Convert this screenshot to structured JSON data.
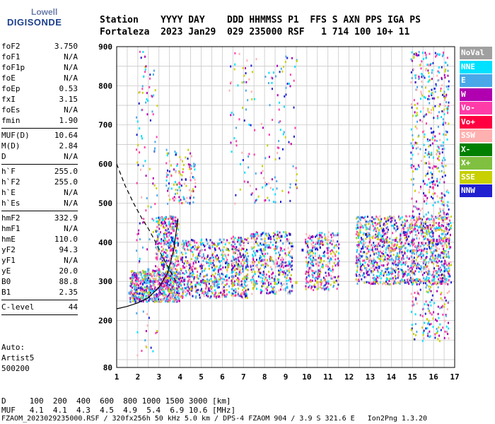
{
  "logo": {
    "line1": "Lowell",
    "line2": "DIGISONDE"
  },
  "header": {
    "line1": "Station    YYYY DAY    DDD HHMMSS P1  FFS S AXN PPS IGA PS",
    "line2": "Fortaleza  2023 Jan29  029 235000 RSF   1 714 100 10+ 11"
  },
  "params": [
    {
      "k": "foF2",
      "v": "3.750"
    },
    {
      "k": "foF1",
      "v": "N/A"
    },
    {
      "k": "foF1p",
      "v": "N/A"
    },
    {
      "k": "foE",
      "v": "N/A"
    },
    {
      "k": "foEp",
      "v": "0.53"
    },
    {
      "k": "fxI",
      "v": "3.15"
    },
    {
      "k": "foEs",
      "v": "N/A"
    },
    {
      "k": "fmin",
      "v": "1.90"
    },
    {
      "sep": true
    },
    {
      "k": "MUF(D)",
      "v": "10.64"
    },
    {
      "k": "M(D)",
      "v": "2.84"
    },
    {
      "k": "D",
      "v": "N/A"
    },
    {
      "sep": true
    },
    {
      "k": "h`F",
      "v": "255.0"
    },
    {
      "k": "h`F2",
      "v": "255.0"
    },
    {
      "k": "h`E",
      "v": "N/A"
    },
    {
      "k": "h`Es",
      "v": "N/A"
    },
    {
      "sep": true
    },
    {
      "k": "hmF2",
      "v": "332.9"
    },
    {
      "k": "hmF1",
      "v": "N/A"
    },
    {
      "k": "hmE",
      "v": "110.0"
    },
    {
      "k": "yF2",
      "v": "94.3"
    },
    {
      "k": "yF1",
      "v": "N/A"
    },
    {
      "k": "yE",
      "v": "20.0"
    },
    {
      "k": "B0",
      "v": "88.8"
    },
    {
      "k": "B1",
      "v": "2.35"
    },
    {
      "sep": true
    },
    {
      "k": "C-level",
      "v": "44"
    },
    {
      "sep": true
    }
  ],
  "auto": {
    "l1": "Auto:",
    "l2": "Artist5",
    "l3": "500200"
  },
  "legend": [
    {
      "label": "NoVal",
      "color": "#a0a0a0"
    },
    {
      "label": "NNE",
      "color": "#00e0ff"
    },
    {
      "label": "E",
      "color": "#4aa8e8"
    },
    {
      "label": "W",
      "color": "#b000b0"
    },
    {
      "label": "Vo-",
      "color": "#ff3ca8"
    },
    {
      "label": "Vo+",
      "color": "#ff0040"
    },
    {
      "label": "SSW",
      "color": "#ffb0b0"
    },
    {
      "label": "X-",
      "color": "#008000"
    },
    {
      "label": "X+",
      "color": "#80c040"
    },
    {
      "label": "SSE",
      "color": "#c8d000"
    },
    {
      "label": "NNW",
      "color": "#2020d0"
    }
  ],
  "muf_table": {
    "row1": "D     100  200  400  600  800 1000 1500 3000 [km]",
    "row2": "MUF   4.1  4.1  4.3  4.5  4.9  5.4  6.9 10.6 [MHz]"
  },
  "footer": "FZAOM_2023029235000.RSF / 320fx256h 50 kHz 5.0 km / DPS-4 FZAOM 904 / 3.9 S 321.6 E   Ion2Png 1.3.20",
  "chart_data": {
    "type": "scatter",
    "title": "",
    "xlabel": "",
    "ylabel": "",
    "xlim": [
      1,
      17
    ],
    "ylim": [
      80,
      900
    ],
    "x_ticks": [
      1,
      2,
      3,
      4,
      5,
      6,
      7,
      8,
      9,
      10,
      11,
      12,
      13,
      14,
      15,
      16,
      17
    ],
    "y_ticks": [
      80,
      200,
      300,
      400,
      500,
      600,
      700,
      800,
      900
    ],
    "grid": true,
    "legend_position": "right",
    "series": [
      {
        "name": "NNE",
        "color": "#00e0ff",
        "points": [
          [
            13.2,
            305
          ],
          [
            13.8,
            305
          ],
          [
            14.5,
            303
          ],
          [
            15.2,
            305
          ],
          [
            16.0,
            303
          ],
          [
            16.6,
            305
          ],
          [
            13.5,
            320
          ],
          [
            14.8,
            318
          ]
        ]
      },
      {
        "name": "E",
        "color": "#4aa8e8",
        "points": [
          [
            3.5,
            395
          ],
          [
            4.2,
            395
          ],
          [
            5.0,
            395
          ],
          [
            5.8,
            395
          ],
          [
            1.6,
            270
          ],
          [
            2.5,
            330
          ],
          [
            4.0,
            320
          ],
          [
            6.8,
            318
          ]
        ]
      },
      {
        "name": "W",
        "color": "#b000b0",
        "points": [
          [
            2.6,
            300
          ],
          [
            3.4,
            300
          ],
          [
            4.2,
            302
          ],
          [
            5.0,
            300
          ],
          [
            13.5,
            405
          ],
          [
            14.2,
            405
          ],
          [
            15.0,
            404
          ],
          [
            16.0,
            405
          ],
          [
            16.6,
            404
          ]
        ]
      },
      {
        "name": "Vo-",
        "color": "#ff3ca8",
        "points": [
          [
            3.0,
            330
          ],
          [
            3.6,
            380
          ],
          [
            3.7,
            430
          ],
          [
            2.9,
            360
          ]
        ]
      },
      {
        "name": "SSW",
        "color": "#ffb0b0",
        "points": [
          [
            6.5,
            345
          ],
          [
            7.5,
            345
          ],
          [
            8.5,
            345
          ],
          [
            10.5,
            345
          ],
          [
            13.0,
            350
          ]
        ]
      },
      {
        "name": "SSE",
        "color": "#c8d000",
        "points": [
          [
            2.5,
            270
          ],
          [
            3.5,
            275
          ],
          [
            4.5,
            280
          ],
          [
            5.5,
            285
          ],
          [
            6.5,
            290
          ],
          [
            7.5,
            292
          ],
          [
            8.5,
            295
          ],
          [
            9.5,
            297
          ],
          [
            10.5,
            298
          ],
          [
            11.3,
            298
          ]
        ]
      },
      {
        "name": "NNW",
        "color": "#2020d0",
        "points": [
          [
            8.2,
            410
          ],
          [
            8.8,
            415
          ],
          [
            9.2,
            420
          ],
          [
            9.8,
            380
          ],
          [
            12.8,
            420
          ],
          [
            13.6,
            430
          ],
          [
            14.6,
            425
          ],
          [
            15.8,
            400
          ]
        ]
      }
    ],
    "trace_curves": [
      {
        "points": [
          [
            1,
            600
          ],
          [
            1.4,
            545
          ],
          [
            1.8,
            500
          ],
          [
            2.2,
            460
          ],
          [
            2.5,
            435
          ],
          [
            2.8,
            405
          ],
          [
            3.1,
            370
          ],
          [
            3.5,
            330
          ],
          [
            3.8,
            300
          ]
        ]
      },
      {
        "points": [
          [
            1,
            230
          ],
          [
            1.5,
            236
          ],
          [
            2.0,
            245
          ],
          [
            2.5,
            258
          ],
          [
            3.0,
            285
          ],
          [
            3.4,
            320
          ],
          [
            3.7,
            380
          ],
          [
            3.9,
            460
          ]
        ]
      }
    ]
  }
}
